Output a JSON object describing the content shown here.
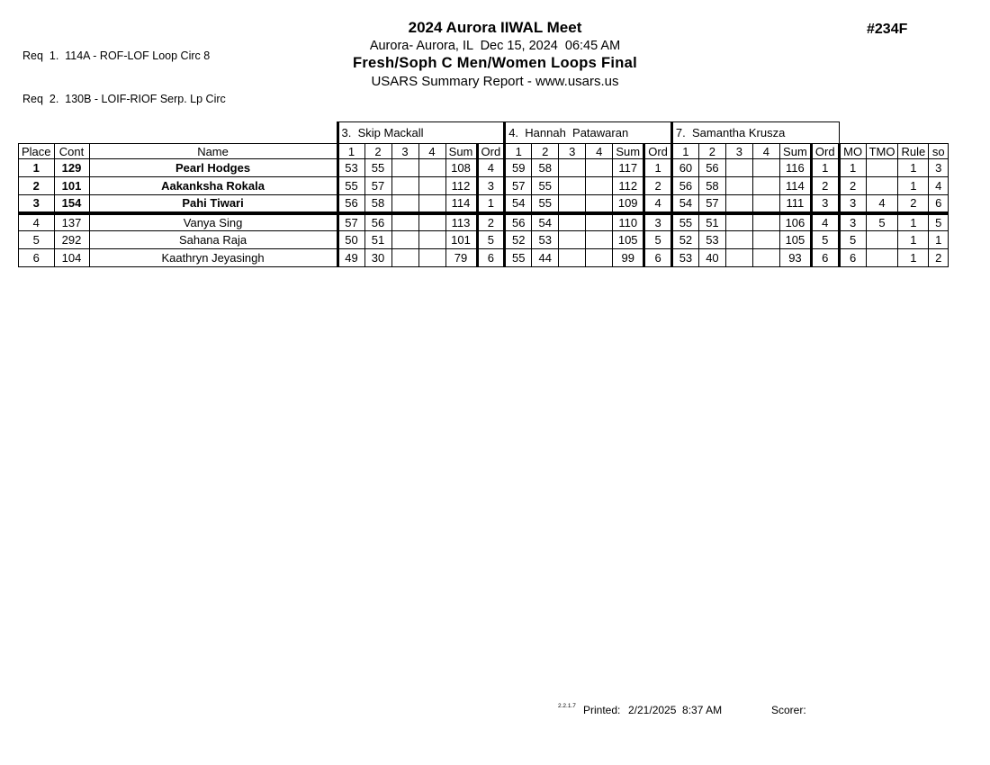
{
  "requirements": [
    "Req  1.  114A - ROF-LOF Loop Circ 8",
    "Req  2.  130B - LOIF-RIOF Serp. Lp Circ"
  ],
  "header": {
    "meet_title": "2024 Aurora IIWAL Meet",
    "location_line": "Aurora- Aurora, IL  Dec 15, 2024  06:45 AM",
    "event_title": "Fresh/Soph C Men/Women Loops Final",
    "report_line": "USARS Summary Report - www.usars.us",
    "event_number": "#234F"
  },
  "table": {
    "judges": [
      "3.  Skip Mackall",
      "4.  Hannah  Patawaran",
      "7.  Samantha Krusza"
    ],
    "columns": {
      "place": "Place",
      "cont": "Cont",
      "name": "Name",
      "scores": [
        "1",
        "2",
        "3",
        "4"
      ],
      "sum": "Sum",
      "ord": "Ord",
      "mo": "MO",
      "tmo": "TMO",
      "rule": "Rule",
      "so": "so"
    },
    "cut_line_after_row": 3,
    "rows": [
      {
        "place": "1",
        "cont": "129",
        "name": "Pearl Hodges",
        "bold": true,
        "judges": [
          {
            "s": [
              "53",
              "55",
              "",
              ""
            ],
            "sum": "108",
            "ord": "4"
          },
          {
            "s": [
              "59",
              "58",
              "",
              ""
            ],
            "sum": "117",
            "ord": "1"
          },
          {
            "s": [
              "60",
              "56",
              "",
              ""
            ],
            "sum": "116",
            "ord": "1"
          }
        ],
        "mo": "1",
        "tmo": "",
        "rule": "1",
        "so": "3"
      },
      {
        "place": "2",
        "cont": "101",
        "name": "Aakanksha Rokala",
        "bold": true,
        "judges": [
          {
            "s": [
              "55",
              "57",
              "",
              ""
            ],
            "sum": "112",
            "ord": "3"
          },
          {
            "s": [
              "57",
              "55",
              "",
              ""
            ],
            "sum": "112",
            "ord": "2"
          },
          {
            "s": [
              "56",
              "58",
              "",
              ""
            ],
            "sum": "114",
            "ord": "2"
          }
        ],
        "mo": "2",
        "tmo": "",
        "rule": "1",
        "so": "4"
      },
      {
        "place": "3",
        "cont": "154",
        "name": "Pahi Tiwari",
        "bold": true,
        "judges": [
          {
            "s": [
              "56",
              "58",
              "",
              ""
            ],
            "sum": "114",
            "ord": "1"
          },
          {
            "s": [
              "54",
              "55",
              "",
              ""
            ],
            "sum": "109",
            "ord": "4"
          },
          {
            "s": [
              "54",
              "57",
              "",
              ""
            ],
            "sum": "111",
            "ord": "3"
          }
        ],
        "mo": "3",
        "tmo": "4",
        "rule": "2",
        "so": "6"
      },
      {
        "place": "4",
        "cont": "137",
        "name": "Vanya Sing",
        "bold": false,
        "judges": [
          {
            "s": [
              "57",
              "56",
              "",
              ""
            ],
            "sum": "113",
            "ord": "2"
          },
          {
            "s": [
              "56",
              "54",
              "",
              ""
            ],
            "sum": "110",
            "ord": "3"
          },
          {
            "s": [
              "55",
              "51",
              "",
              ""
            ],
            "sum": "106",
            "ord": "4"
          }
        ],
        "mo": "3",
        "tmo": "5",
        "rule": "1",
        "so": "5"
      },
      {
        "place": "5",
        "cont": "292",
        "name": "Sahana Raja",
        "bold": false,
        "judges": [
          {
            "s": [
              "50",
              "51",
              "",
              ""
            ],
            "sum": "101",
            "ord": "5"
          },
          {
            "s": [
              "52",
              "53",
              "",
              ""
            ],
            "sum": "105",
            "ord": "5"
          },
          {
            "s": [
              "52",
              "53",
              "",
              ""
            ],
            "sum": "105",
            "ord": "5"
          }
        ],
        "mo": "5",
        "tmo": "",
        "rule": "1",
        "so": "1"
      },
      {
        "place": "6",
        "cont": "104",
        "name": "Kaathryn Jeyasingh",
        "bold": false,
        "judges": [
          {
            "s": [
              "49",
              "30",
              "",
              ""
            ],
            "sum": "79",
            "ord": "6"
          },
          {
            "s": [
              "55",
              "44",
              "",
              ""
            ],
            "sum": "99",
            "ord": "6"
          },
          {
            "s": [
              "53",
              "40",
              "",
              ""
            ],
            "sum": "93",
            "ord": "6"
          }
        ],
        "mo": "6",
        "tmo": "",
        "rule": "1",
        "so": "2"
      }
    ]
  },
  "footer": {
    "version": "2.2.1.7",
    "printed_label": "Printed:",
    "printed_value": "2/21/2025  8:37 AM",
    "scorer_label": "Scorer:"
  },
  "colors": {
    "ink": "#000000",
    "paper": "#ffffff"
  }
}
